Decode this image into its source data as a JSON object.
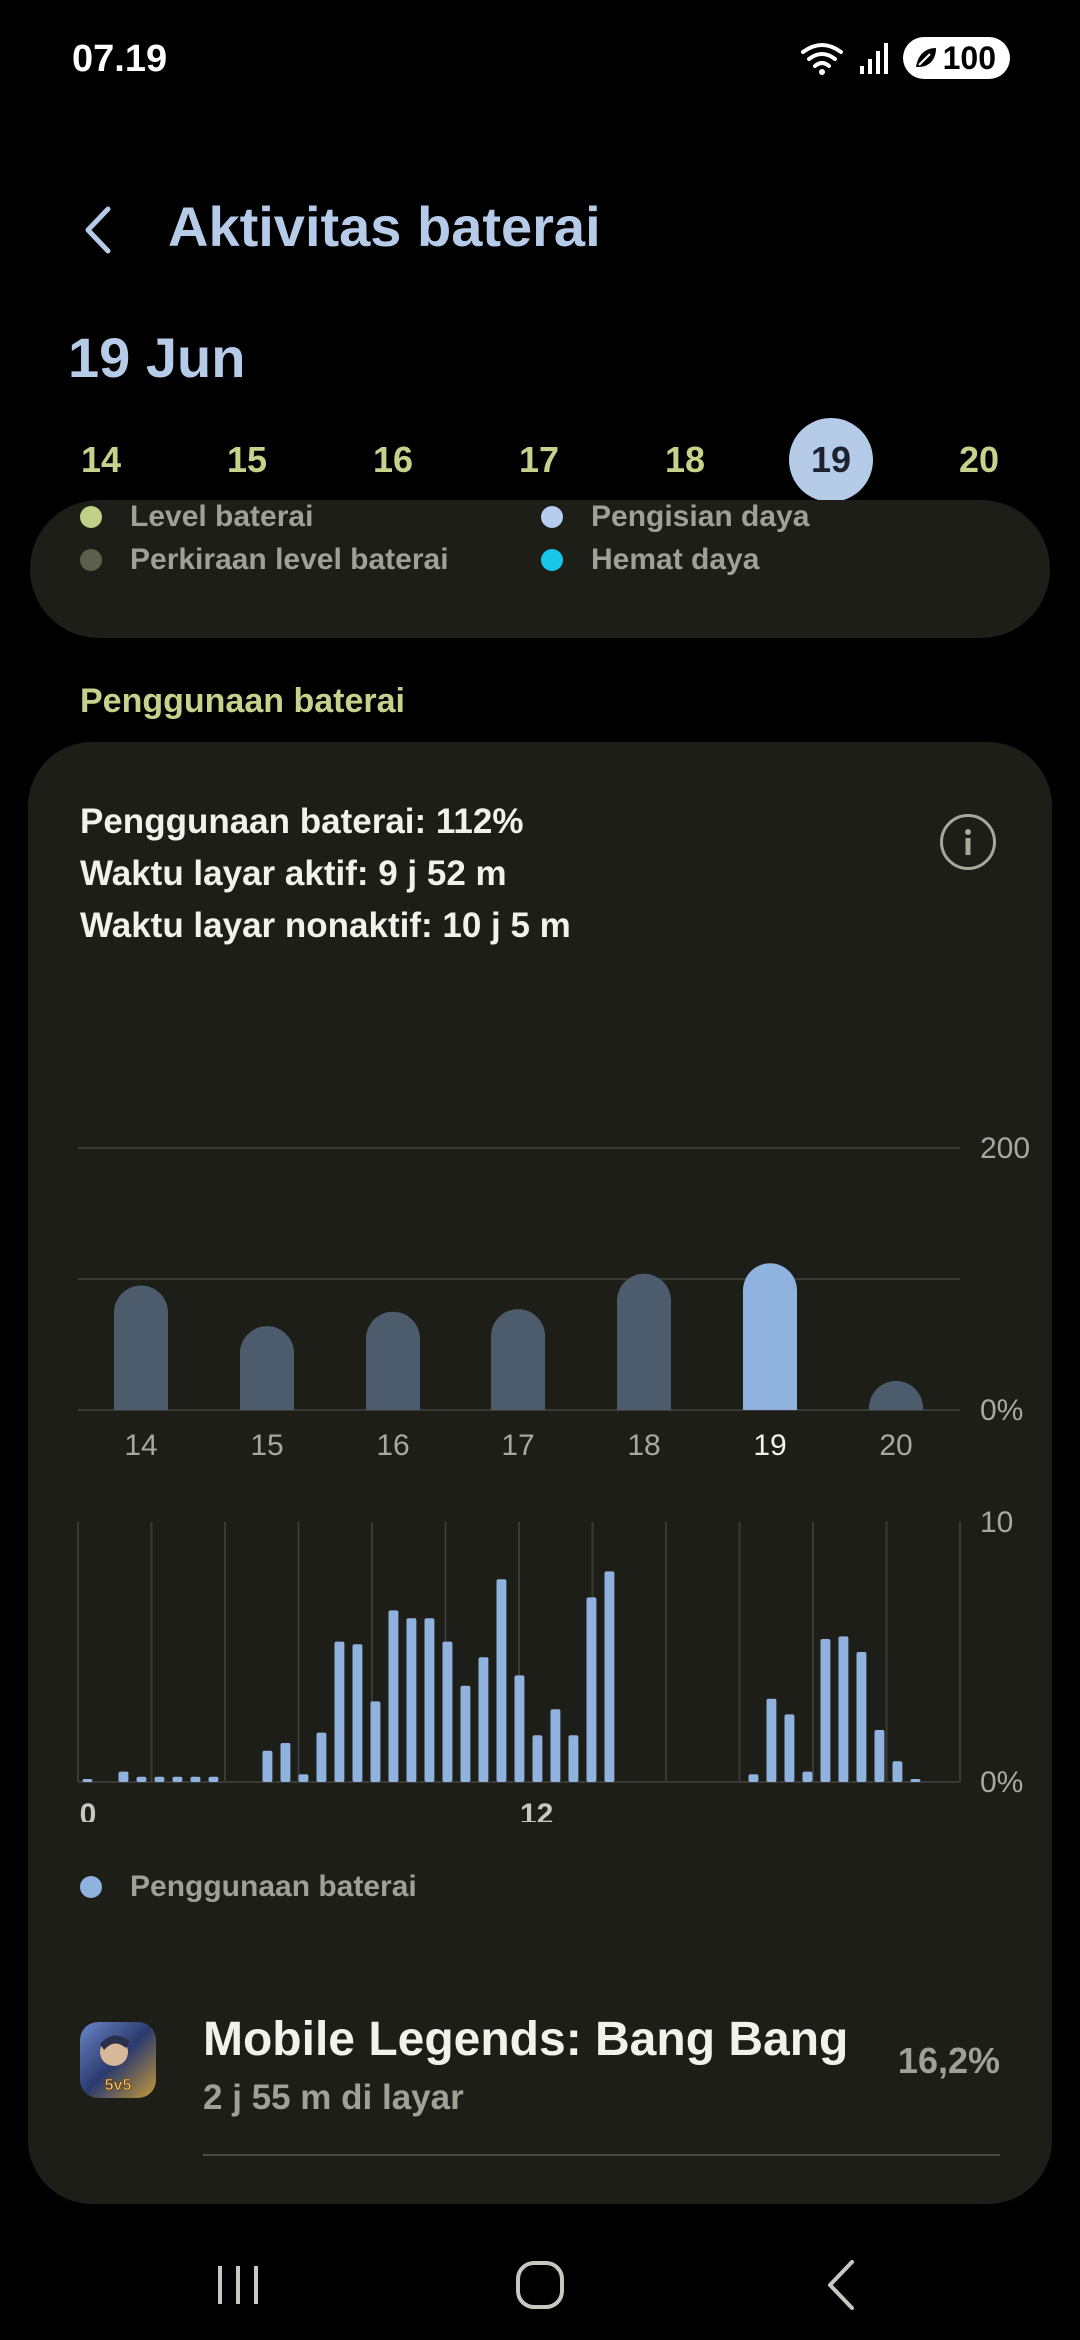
{
  "status_bar": {
    "time": "07.19",
    "battery": "100"
  },
  "header": {
    "title": "Aktivitas baterai"
  },
  "date_title": "19 Jun",
  "days": [
    {
      "label": "14",
      "selected": false
    },
    {
      "label": "15",
      "selected": false
    },
    {
      "label": "16",
      "selected": false
    },
    {
      "label": "17",
      "selected": false
    },
    {
      "label": "18",
      "selected": false
    },
    {
      "label": "19",
      "selected": true
    },
    {
      "label": "20",
      "selected": false
    }
  ],
  "legend": {
    "level": "Level baterai",
    "estimate": "Perkiraan level baterai",
    "charging": "Pengisian daya",
    "power_saving": "Hemat daya",
    "colors": {
      "level": "#c2cf87",
      "estimate": "#5b5f4b",
      "charging": "#b7cdf0",
      "power_saving": "#17c7e8"
    }
  },
  "section_title": "Penggunaan baterai",
  "summary": {
    "usage": "Penggunaan baterai: 112%",
    "screen_on": "Waktu layar aktif: 9 j 52 m",
    "screen_off": "Waktu layar nonaktif: 10 j 5 m"
  },
  "chart_data": [
    {
      "type": "bar",
      "categories": [
        "14",
        "15",
        "16",
        "17",
        "18",
        "19",
        "20"
      ],
      "values": [
        95,
        64,
        75,
        77,
        104,
        112,
        2
      ],
      "highlighted_index": 5,
      "y_tick_labels": [
        "0%",
        "200"
      ],
      "ylim": [
        0,
        200
      ],
      "grid": true,
      "colors": {
        "bar": "#4c5c6c",
        "highlight": "#8fb2de"
      }
    },
    {
      "type": "bar",
      "x_tick_labels": [
        "0",
        "12"
      ],
      "y_tick_labels": [
        "0%",
        "10"
      ],
      "ylim": [
        0,
        10
      ],
      "grid": true,
      "series": [
        {
          "name": "Penggunaan baterai",
          "values": [
            0.1,
            0,
            0.4,
            0.2,
            0.2,
            0.2,
            0.2,
            0.2,
            0,
            0,
            1.2,
            1.5,
            0.3,
            1.9,
            5.4,
            5.3,
            3.1,
            6.6,
            6.3,
            6.3,
            5.4,
            3.7,
            4.8,
            7.8,
            4.1,
            1.8,
            2.8,
            1.8,
            7.1,
            8.1,
            0,
            0,
            0,
            0,
            0,
            0,
            0,
            0.3,
            3.2,
            2.6,
            0.4,
            5.5,
            5.6,
            5.0,
            2.0,
            0.8,
            0.1,
            0,
            0
          ],
          "color": "#8fb2de"
        }
      ]
    }
  ],
  "usage_legend": "Penggunaan baterai",
  "apps": [
    {
      "name": "Mobile Legends: Bang Bang",
      "detail": "2 j 55 m di layar",
      "percent": "16,2%",
      "icon_text": "5v5"
    }
  ],
  "nav": {
    "icons": [
      "recent-apps-icon",
      "home-icon",
      "back-icon"
    ]
  }
}
